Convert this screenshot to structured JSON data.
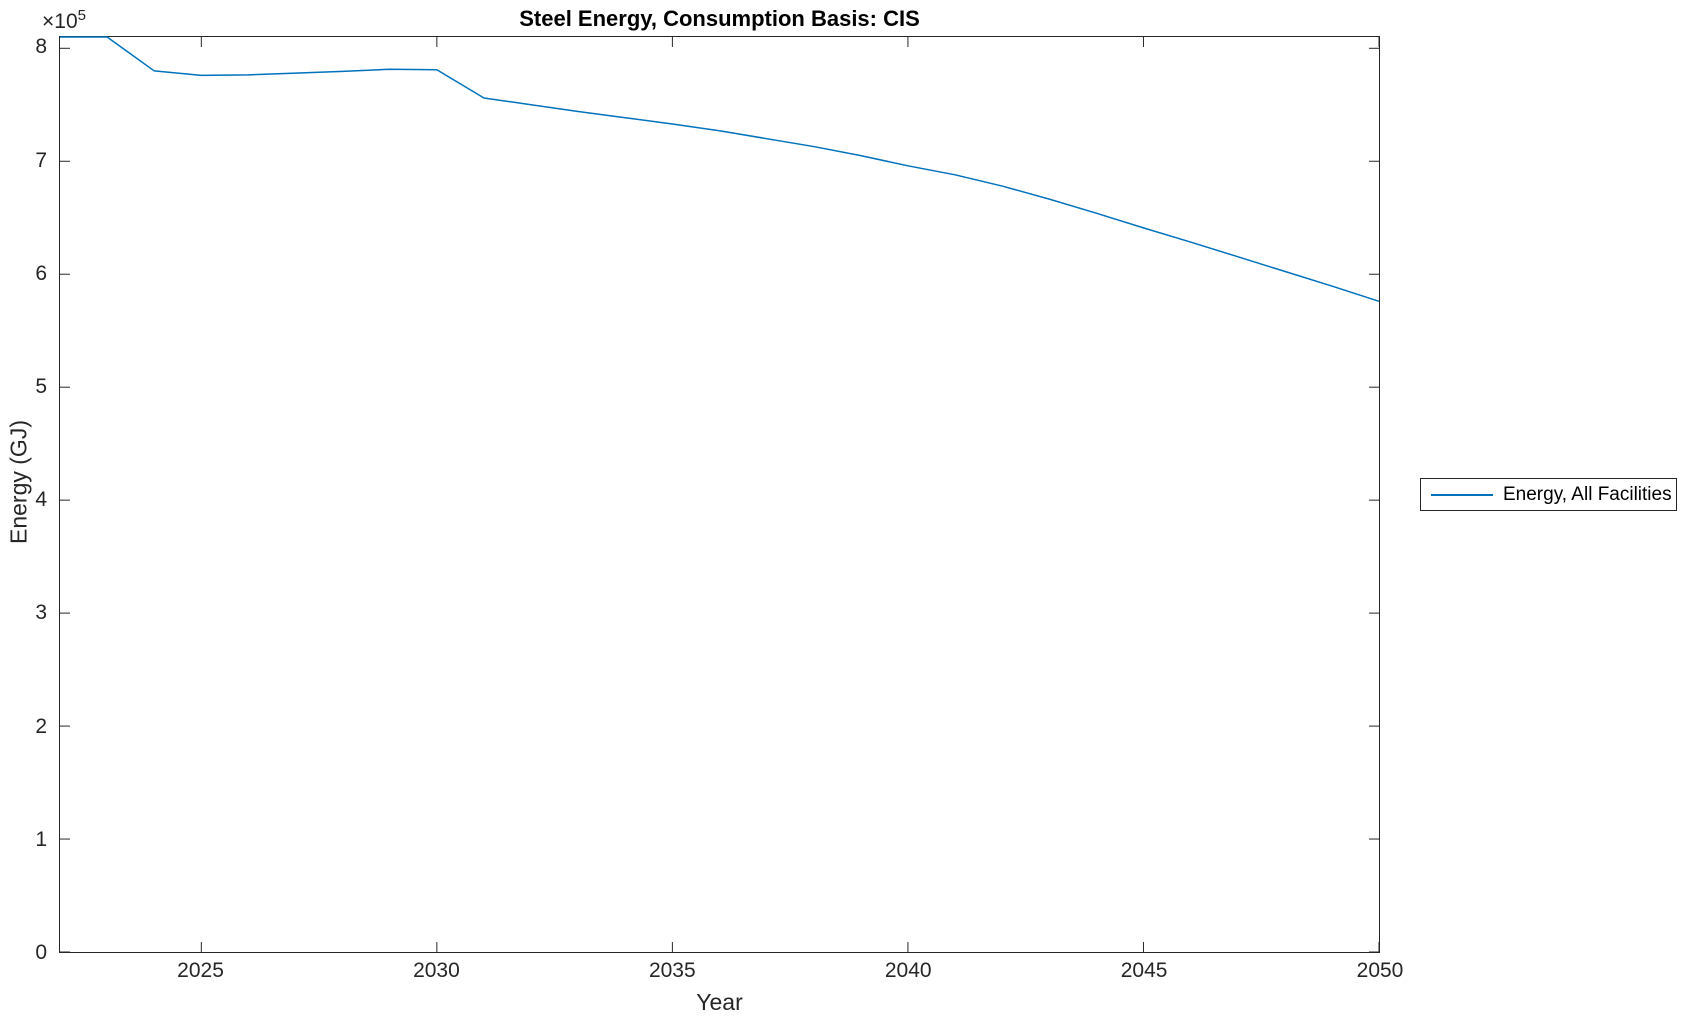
{
  "figure": {
    "title": "Steel Energy, Consumption Basis: CIS",
    "xlabel": "Year",
    "ylabel": "Energy (GJ)",
    "y_multiplier_base": "×10",
    "y_multiplier_exponent": "5",
    "legend": {
      "label": "Energy, All Facilities"
    }
  },
  "colors": {
    "line": "#0072BD",
    "axis": "#262626",
    "background": "#ffffff"
  },
  "chart_data": {
    "type": "line",
    "title": "Steel Energy, Consumption Basis: CIS",
    "xlabel": "Year",
    "ylabel": "Energy (GJ)",
    "xlim": [
      2022,
      2050
    ],
    "ylim": [
      0,
      810000
    ],
    "grid": false,
    "legend_position": "right-outside",
    "x_ticks": [
      2025,
      2030,
      2035,
      2040,
      2045,
      2050
    ],
    "y_ticks": [
      0,
      100000,
      200000,
      300000,
      400000,
      500000,
      600000,
      700000,
      800000
    ],
    "y_tick_labels": [
      "0",
      "1",
      "2",
      "3",
      "4",
      "5",
      "6",
      "7",
      "8"
    ],
    "y_tick_multiplier": "1e5",
    "series": [
      {
        "name": "Energy, All Facilities",
        "color": "#0072BD",
        "x": [
          2022,
          2023,
          2024,
          2025,
          2026,
          2027,
          2028,
          2029,
          2030,
          2031,
          2032,
          2033,
          2034,
          2035,
          2036,
          2037,
          2038,
          2039,
          2040,
          2041,
          2042,
          2043,
          2044,
          2045,
          2046,
          2047,
          2048,
          2049,
          2050
        ],
        "values": [
          810000,
          810000,
          780000,
          776000,
          776500,
          778000,
          779500,
          781500,
          781000,
          756000,
          750000,
          744000,
          738500,
          733000,
          727000,
          720000,
          713000,
          705000,
          696000,
          688000,
          678000,
          666500,
          654000,
          641000,
          628500,
          615500,
          602500,
          589500,
          576000
        ]
      }
    ]
  }
}
